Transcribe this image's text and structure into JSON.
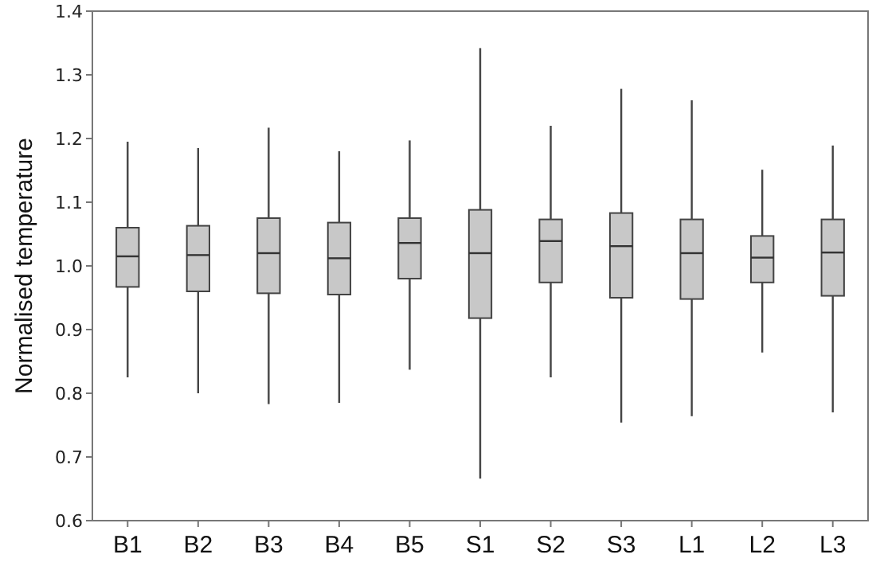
{
  "chart_data": {
    "type": "box",
    "ylabel": "Normalised temperature",
    "categories": [
      "B1",
      "B2",
      "B3",
      "B4",
      "B5",
      "S1",
      "S2",
      "S3",
      "L1",
      "L2",
      "L3"
    ],
    "color": "#c8c8c8",
    "ylim": [
      0.6,
      1.4
    ],
    "yticks": [
      {
        "value": 0.6,
        "label": "0.6"
      },
      {
        "value": 0.7,
        "label": "0.7"
      },
      {
        "value": 0.8,
        "label": "0.8"
      },
      {
        "value": 0.9,
        "label": "0.9"
      },
      {
        "value": 1.0,
        "label": "1.0"
      },
      {
        "value": 1.1,
        "label": "1.1"
      },
      {
        "value": 1.2,
        "label": "1.2"
      },
      {
        "value": 1.3,
        "label": "1.3"
      },
      {
        "value": 1.4,
        "label": "1.4"
      }
    ],
    "grid": false,
    "boxes": [
      {
        "low": 0.825,
        "q1": 0.967,
        "median": 1.015,
        "q3": 1.06,
        "high": 1.195
      },
      {
        "low": 0.8,
        "q1": 0.96,
        "median": 1.017,
        "q3": 1.063,
        "high": 1.185
      },
      {
        "low": 0.783,
        "q1": 0.957,
        "median": 1.02,
        "q3": 1.075,
        "high": 1.217
      },
      {
        "low": 0.785,
        "q1": 0.955,
        "median": 1.012,
        "q3": 1.068,
        "high": 1.18
      },
      {
        "low": 0.837,
        "q1": 0.98,
        "median": 1.036,
        "q3": 1.075,
        "high": 1.197
      },
      {
        "low": 0.666,
        "q1": 0.918,
        "median": 1.02,
        "q3": 1.088,
        "high": 1.342
      },
      {
        "low": 0.825,
        "q1": 0.974,
        "median": 1.039,
        "q3": 1.073,
        "high": 1.22
      },
      {
        "low": 0.754,
        "q1": 0.95,
        "median": 1.031,
        "q3": 1.083,
        "high": 1.278
      },
      {
        "low": 0.764,
        "q1": 0.948,
        "median": 1.02,
        "q3": 1.073,
        "high": 1.26
      },
      {
        "low": 0.864,
        "q1": 0.974,
        "median": 1.013,
        "q3": 1.047,
        "high": 1.151
      },
      {
        "low": 0.77,
        "q1": 0.953,
        "median": 1.021,
        "q3": 1.073,
        "high": 1.189
      }
    ]
  }
}
